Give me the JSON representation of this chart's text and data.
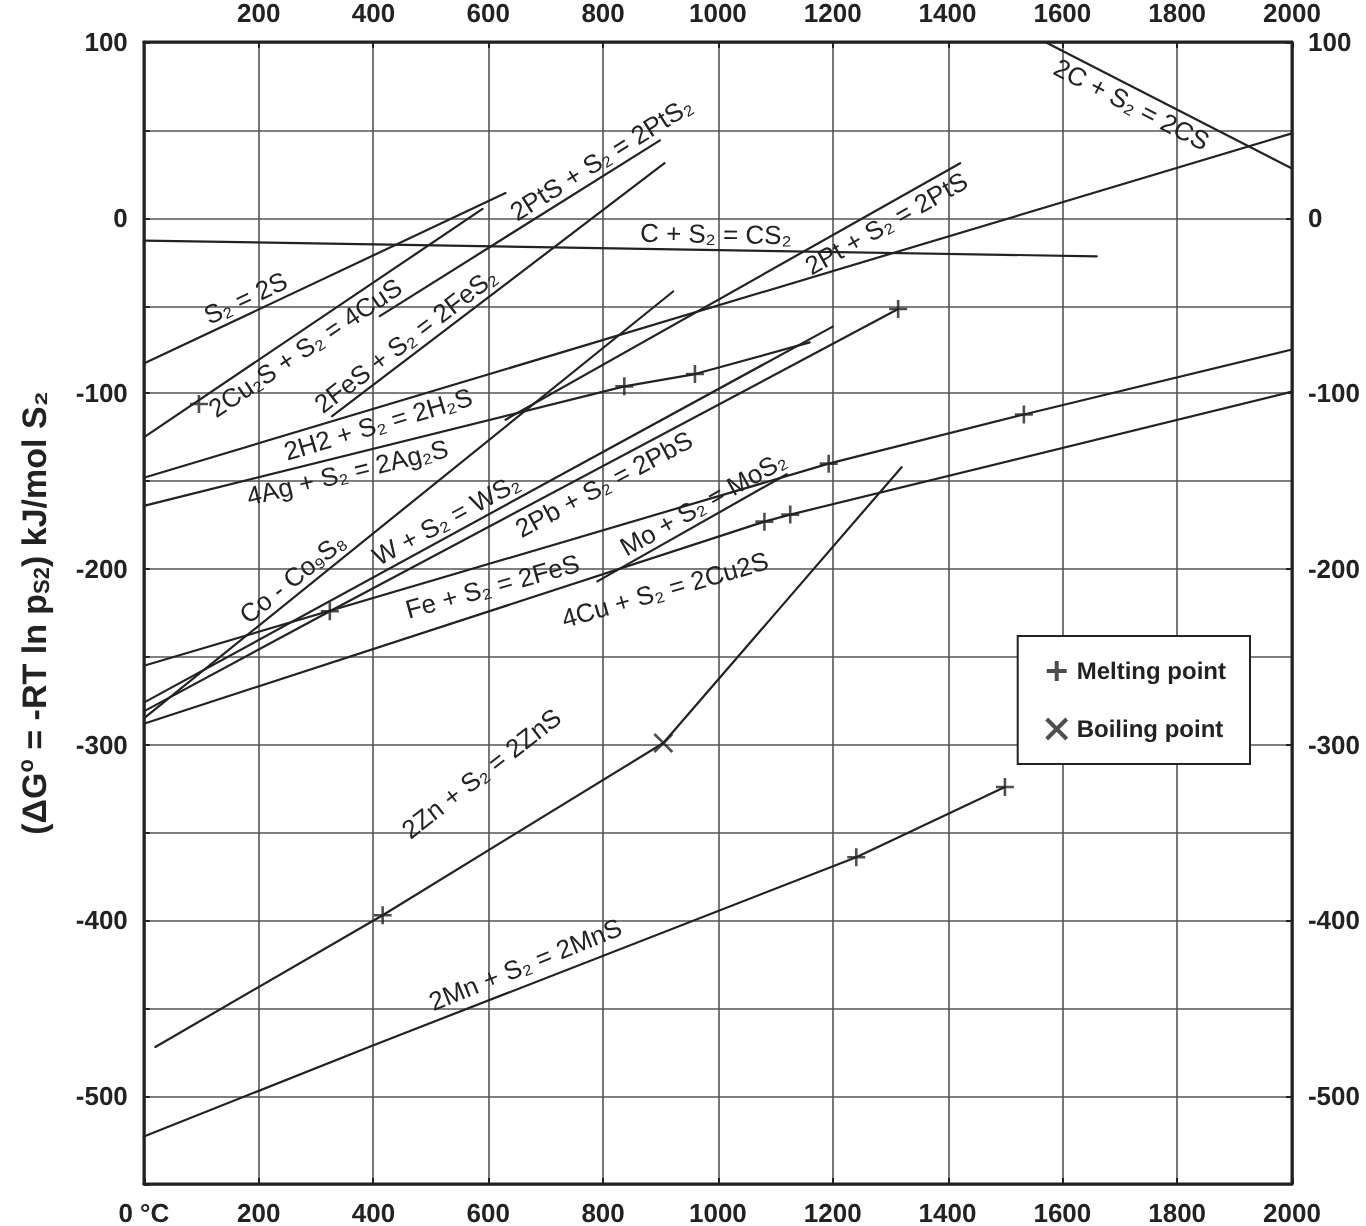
{
  "chart_data": {
    "type": "line",
    "ylabel": "(ΔG$^{o}$ = -RT ln p$_{S2}$) kJ/mol S₂",
    "xlim": [
      0,
      2000
    ],
    "xticks": [
      {
        "value": 0,
        "label": "0 °C"
      },
      200,
      400,
      600,
      800,
      1000,
      1200,
      1400,
      1600,
      1800,
      2000
    ],
    "x2lim": [
      0,
      2000
    ],
    "x2ticks": [
      200,
      400,
      600,
      800,
      1000,
      1200,
      1400,
      1600,
      1800,
      2000
    ],
    "ylim": [
      -550,
      100
    ],
    "yticks": [
      {
        "value": -550,
        "label": null
      },
      -500,
      {
        "value": -450,
        "label": null
      },
      -400,
      {
        "value": -350,
        "label": null
      },
      -300,
      {
        "value": -250,
        "label": null
      },
      -200,
      {
        "value": -150,
        "label": null
      },
      -100,
      {
        "value": -50,
        "label": null
      },
      0,
      {
        "value": 50,
        "label": null
      },
      100
    ],
    "y2lim": [
      -550,
      100
    ],
    "y2ticks": [
      -500,
      -400,
      -300,
      -200,
      -100,
      0,
      100
    ],
    "grid": true,
    "legend": "right",
    "series": [
      {
        "name": "C + S₂ = CS₂",
        "color": "#222222",
        "x": [
          0,
          1660
        ],
        "values": [
          -13,
          -22
        ]
      },
      {
        "name": "2C + S₂ = 2CS",
        "color": "#222222",
        "x": [
          1570,
          2000
        ],
        "values": [
          100,
          28
        ]
      },
      {
        "name": "S₂ = 2S",
        "color": "#222222",
        "x": [
          0,
          630
        ],
        "values": [
          -83,
          14
        ]
      },
      {
        "name": "2Cu₂S + S₂ = 4CuS",
        "color": "#222222",
        "x": [
          0,
          590
        ],
        "values": [
          -125,
          5
        ]
      },
      {
        "name": "2PtS + S₂ = 2PtS₂",
        "color": "#222222",
        "x": [
          411,
          899
        ],
        "values": [
          -56,
          44
        ]
      },
      {
        "name": "2FeS + S₂ = 2FeS₂",
        "color": "#222222",
        "x": [
          328,
          907
        ],
        "values": [
          -113,
          31
        ]
      },
      {
        "name": "2Pt + S₂ = 2PtS",
        "color": "#222222",
        "x": [
          630,
          1422
        ],
        "values": [
          -115,
          31
        ]
      },
      {
        "name": "2H2 + S₂ = 2H₂S",
        "color": "#222222",
        "x": [
          0,
          2000
        ],
        "values": [
          -148,
          48
        ]
      },
      {
        "name": "4Ag + S₂ = 2Ag₂S",
        "color": "#222222",
        "x": [
          0,
          837,
          960,
          1160
        ],
        "values": [
          -164,
          -96,
          -89,
          -71
        ]
      },
      {
        "name": "Co - Co₉S₈",
        "color": "#222222",
        "x": [
          0,
          922
        ],
        "values": [
          -285,
          -42
        ]
      },
      {
        "name": "W + S₂ = WS₂",
        "color": "#222222",
        "x": [
          0,
          1200
        ],
        "values": [
          -276,
          -62
        ]
      },
      {
        "name": "2Pb + S₂ = 2PbS",
        "color": "#222222",
        "x": [
          0,
          324,
          1314
        ],
        "values": [
          -281,
          -224,
          -52
        ]
      },
      {
        "name": "Fe + S₂ = 2FeS",
        "color": "#222222",
        "x": [
          0,
          1193,
          1533,
          2000
        ],
        "values": [
          -255,
          -140,
          -112,
          -75
        ]
      },
      {
        "name": "4Cu + S₂ = 2Cu2S",
        "color": "#222222",
        "x": [
          0,
          1081,
          1126,
          2000
        ],
        "values": [
          -288,
          -173,
          -169,
          -99
        ]
      },
      {
        "name": "Mo + S₂ = MoS₂",
        "color": "#222222",
        "x": [
          790,
          1120
        ],
        "values": [
          -207,
          -146
        ]
      },
      {
        "name": "2Zn + S₂ = 2ZnS",
        "color": "#222222",
        "x": [
          20,
          416,
          905,
          1320
        ],
        "values": [
          -472,
          -397,
          -299,
          -142
        ]
      },
      {
        "name": "2Mn + S₂ = 2MnS",
        "color": "#222222",
        "x": [
          0,
          400,
          1241,
          1500
        ],
        "values": [
          -523,
          -471,
          -364,
          -324
        ]
      },
      {
        "name": "Melting point",
        "type": "scatter",
        "marker": "plus",
        "color": "#222222",
        "x": [
          96,
          324,
          416,
          837,
          960,
          1314,
          1081,
          1126,
          1193,
          1533,
          1241,
          1500
        ],
        "values": [
          -106,
          -224,
          -397,
          -96,
          -89,
          -52,
          -173,
          -169,
          -140,
          -112,
          -364,
          -324
        ]
      },
      {
        "name": "Boiling point",
        "type": "scatter",
        "marker": "cross",
        "color": "#222222",
        "x": [
          905
        ],
        "values": [
          -299
        ]
      }
    ]
  }
}
